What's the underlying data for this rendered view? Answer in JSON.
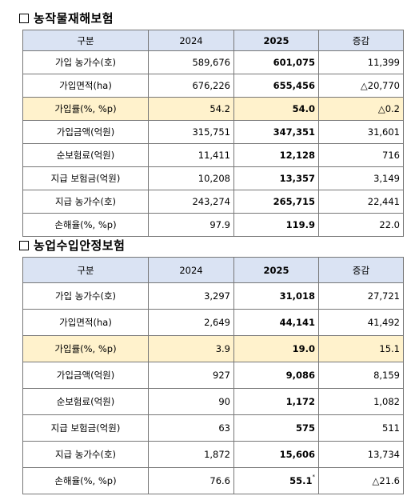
{
  "sections": [
    {
      "title": "농작물재해보험",
      "headers": [
        "구분",
        "2024",
        "2025",
        "증감"
      ],
      "rows": [
        {
          "label": "가입 농가수(호)",
          "v2024": "589,676",
          "v2025": "601,075",
          "diff": "11,399"
        },
        {
          "label": "가입면적(ha)",
          "v2024": "676,226",
          "v2025": "655,456",
          "diff": "△20,770"
        },
        {
          "label": "가입률(%, %p)",
          "v2024": "54.2",
          "v2025": "54.0",
          "diff": "△0.2"
        },
        {
          "label": "가입금액(억원)",
          "v2024": "315,751",
          "v2025": "347,351",
          "diff": "31,601"
        },
        {
          "label": "순보험료(억원)",
          "v2024": "11,411",
          "v2025": "12,128",
          "diff": "716"
        },
        {
          "label": "지급 보험금(억원)",
          "v2024": "10,208",
          "v2025": "13,357",
          "diff": "3,149"
        },
        {
          "label": "지급 농가수(호)",
          "v2024": "243,274",
          "v2025": "265,715",
          "diff": "22,441"
        },
        {
          "label": "손해율(%, %p)",
          "v2024": "97.9",
          "v2025": "119.9",
          "diff": "22.0"
        }
      ]
    },
    {
      "title": "농업수입안정보험",
      "headers": [
        "구분",
        "2024",
        "2025",
        "증감"
      ],
      "rows": [
        {
          "label": "가입 농가수(호)",
          "v2024": "3,297",
          "v2025": "31,018",
          "diff": "27,721"
        },
        {
          "label": "가입면적(ha)",
          "v2024": "2,649",
          "v2025": "44,141",
          "diff": "41,492"
        },
        {
          "label": "가입률(%, %p)",
          "v2024": "3.9",
          "v2025": "19.0",
          "diff": "15.1"
        },
        {
          "label": "가입금액(억원)",
          "v2024": "927",
          "v2025": "9,086",
          "diff": "8,159"
        },
        {
          "label": "순보험료(억원)",
          "v2024": "90",
          "v2025": "1,172",
          "diff": "1,082"
        },
        {
          "label": "지급 보험금(억원)",
          "v2024": "63",
          "v2025": "575",
          "diff": "511"
        },
        {
          "label": "지급 농가수(호)",
          "v2024": "1,872",
          "v2025": "15,606",
          "diff": "13,734"
        },
        {
          "label": "손해율(%, %p)",
          "v2024": "76.6",
          "v2025": "55.1",
          "footnote": "*",
          "diff": "△21.6"
        }
      ]
    }
  ]
}
